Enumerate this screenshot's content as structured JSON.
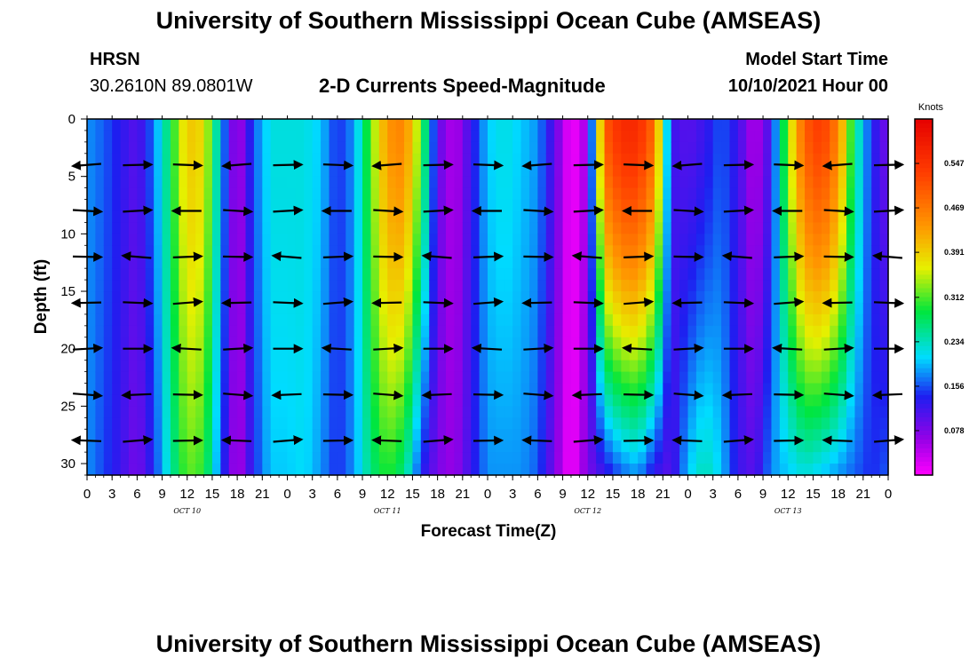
{
  "header": {
    "title_top": "University of Southern Mississippi Ocean Cube (AMSEAS)",
    "title_bottom": "University of Southern Mississippi Ocean Cube (AMSEAS)",
    "station": "HRSN",
    "location": "30.2610N  89.0801W",
    "chart_title": "2-D Currents Speed-Magnitude",
    "model_start_label": "Model Start Time",
    "model_start_value": "10/10/2021 Hour 00"
  },
  "chart_data": {
    "type": "heatmap",
    "title": "2-D Currents Speed-Magnitude",
    "xlabel": "Forecast Time(Z)",
    "ylabel": "Depth (ft)",
    "ylim": [
      31,
      0
    ],
    "x_tick_labels": [
      "0",
      "3",
      "6",
      "9",
      "12",
      "15",
      "18",
      "21",
      "0",
      "3",
      "6",
      "9",
      "12",
      "15",
      "18",
      "21",
      "0",
      "3",
      "6",
      "9",
      "12",
      "15",
      "18",
      "21",
      "0",
      "3",
      "6",
      "9",
      "12",
      "15",
      "18",
      "21",
      "0"
    ],
    "y_ticks": [
      0,
      5,
      10,
      15,
      20,
      25,
      30
    ],
    "date_labels": [
      {
        "label": "OCT 10",
        "hour": 12
      },
      {
        "label": "OCT 11",
        "hour": 36
      },
      {
        "label": "OCT 12",
        "hour": 60
      },
      {
        "label": "OCT 13",
        "hour": 84
      }
    ],
    "colorbar": {
      "title": "Knots",
      "ticks": [
        0.547,
        0.469,
        0.391,
        0.312,
        0.234,
        0.156,
        0.078
      ],
      "range": [
        0,
        0.625
      ]
    },
    "speed_profiles": {
      "hours": [
        0,
        2,
        4,
        6,
        8,
        10,
        12,
        14,
        16,
        18,
        20,
        22,
        24,
        26,
        28,
        30,
        32,
        34,
        36,
        38,
        40,
        42,
        44,
        46,
        48,
        50,
        52,
        54,
        56,
        58,
        60,
        62,
        64,
        66,
        68,
        70,
        72,
        74,
        76,
        78,
        80,
        82,
        84,
        86,
        88,
        90,
        92,
        94,
        96
      ],
      "surface": [
        0.18,
        0.16,
        0.13,
        0.1,
        0.17,
        0.28,
        0.4,
        0.38,
        0.2,
        0.04,
        0.16,
        0.22,
        0.22,
        0.22,
        0.2,
        0.14,
        0.18,
        0.32,
        0.44,
        0.46,
        0.32,
        0.1,
        0.04,
        0.12,
        0.2,
        0.22,
        0.2,
        0.18,
        0.1,
        0.0,
        0.06,
        0.5,
        0.56,
        0.56,
        0.48,
        0.12,
        0.1,
        0.12,
        0.16,
        0.12,
        0.04,
        0.12,
        0.34,
        0.5,
        0.54,
        0.46,
        0.26,
        0.14,
        0.08
      ],
      "bottom": [
        0.18,
        0.15,
        0.12,
        0.08,
        0.14,
        0.24,
        0.32,
        0.3,
        0.16,
        0.04,
        0.14,
        0.2,
        0.2,
        0.21,
        0.18,
        0.14,
        0.18,
        0.26,
        0.3,
        0.26,
        0.14,
        0.08,
        0.06,
        0.12,
        0.18,
        0.18,
        0.18,
        0.16,
        0.08,
        0.0,
        0.08,
        0.12,
        0.16,
        0.18,
        0.12,
        0.1,
        0.2,
        0.24,
        0.2,
        0.12,
        0.1,
        0.18,
        0.2,
        0.22,
        0.2,
        0.18,
        0.16,
        0.14,
        0.16
      ]
    },
    "vector_rows_depth_ft": [
      4,
      8,
      12,
      16,
      20,
      24,
      28
    ],
    "vector_hours": [
      0,
      6,
      12,
      18,
      24,
      30,
      36,
      42,
      48,
      54,
      60,
      66,
      72,
      78,
      84,
      90,
      96
    ]
  }
}
